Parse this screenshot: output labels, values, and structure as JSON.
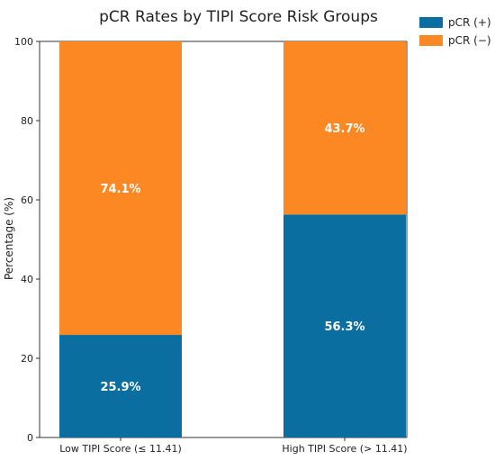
{
  "chart_data": {
    "type": "bar",
    "stacked": true,
    "title": "pCR Rates by TIPI Score Risk Groups",
    "xlabel": "",
    "ylabel": "Percentage (%)",
    "ylim": [
      0,
      100
    ],
    "yticks": [
      0,
      20,
      40,
      60,
      80,
      100
    ],
    "categories": [
      "Low TIPI Score (≤ 11.41)",
      "High TIPI Score (> 11.41)"
    ],
    "series": [
      {
        "name": "pCR (+)",
        "color": "#0a6fa0",
        "values": [
          25.9,
          56.3
        ],
        "labels": [
          "25.9%",
          "56.3%"
        ]
      },
      {
        "name": "pCR (−)",
        "color": "#fb8822",
        "values": [
          74.1,
          43.7
        ],
        "labels": [
          "74.1%",
          "43.7%"
        ]
      }
    ],
    "legend_position": "top-right",
    "grid": false
  }
}
